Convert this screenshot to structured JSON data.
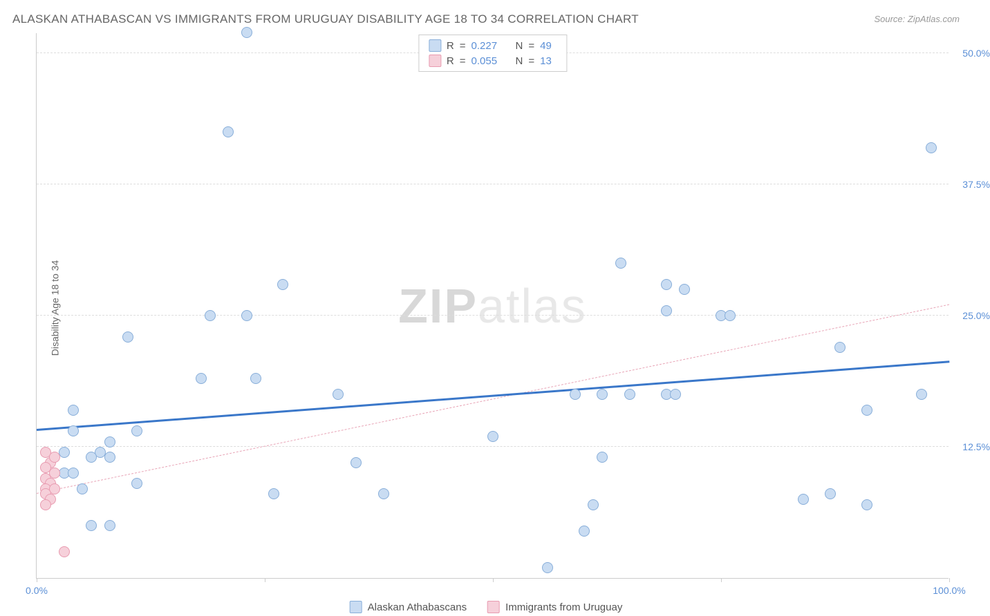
{
  "title": "ALASKAN ATHABASCAN VS IMMIGRANTS FROM URUGUAY DISABILITY AGE 18 TO 34 CORRELATION CHART",
  "source": "Source: ZipAtlas.com",
  "y_axis_label": "Disability Age 18 to 34",
  "watermark": {
    "bold": "ZIP",
    "light": "atlas"
  },
  "chart": {
    "type": "scatter",
    "xlim": [
      0,
      100
    ],
    "ylim": [
      0,
      52
    ],
    "y_ticks": [
      {
        "value": 12.5,
        "label": "12.5%"
      },
      {
        "value": 25.0,
        "label": "25.0%"
      },
      {
        "value": 37.5,
        "label": "37.5%"
      },
      {
        "value": 50.0,
        "label": "50.0%"
      }
    ],
    "x_ticks": [
      {
        "value": 0,
        "label": "0.0%"
      },
      {
        "value": 50,
        "label": ""
      },
      {
        "value": 100,
        "label": "100.0%"
      }
    ],
    "x_minor_ticks": [
      25,
      75
    ],
    "background_color": "#ffffff",
    "grid_color": "#dddddd"
  },
  "series": {
    "a": {
      "name": "Alaskan Athabascans",
      "fill": "#c9dcf2",
      "stroke": "#88aed9",
      "marker_size": 16,
      "r_value": "0.227",
      "n_value": "49",
      "trend": {
        "x1": 0,
        "y1": 14.0,
        "x2": 100,
        "y2": 20.5,
        "color": "#3a77c9",
        "width": 3,
        "dash": false
      },
      "points": [
        [
          23,
          52
        ],
        [
          21,
          42.5
        ],
        [
          98,
          41
        ],
        [
          64,
          30
        ],
        [
          69,
          28
        ],
        [
          71,
          27.5
        ],
        [
          27,
          28
        ],
        [
          69,
          25.5
        ],
        [
          75,
          25
        ],
        [
          76,
          25
        ],
        [
          19,
          25
        ],
        [
          23,
          25
        ],
        [
          10,
          23
        ],
        [
          88,
          22
        ],
        [
          18,
          19
        ],
        [
          24,
          19
        ],
        [
          33,
          17.5
        ],
        [
          59,
          17.5
        ],
        [
          62,
          17.5
        ],
        [
          65,
          17.5
        ],
        [
          69,
          17.5
        ],
        [
          70,
          17.5
        ],
        [
          91,
          16
        ],
        [
          97,
          17.5
        ],
        [
          4,
          16
        ],
        [
          4,
          14
        ],
        [
          11,
          14
        ],
        [
          8,
          13
        ],
        [
          7,
          12
        ],
        [
          50,
          13.5
        ],
        [
          3,
          12
        ],
        [
          6,
          11.5
        ],
        [
          8,
          11.5
        ],
        [
          62,
          11.5
        ],
        [
          35,
          11
        ],
        [
          3,
          10
        ],
        [
          4,
          10
        ],
        [
          5,
          8.5
        ],
        [
          11,
          9
        ],
        [
          26,
          8
        ],
        [
          38,
          8
        ],
        [
          61,
          7
        ],
        [
          84,
          7.5
        ],
        [
          87,
          8
        ],
        [
          91,
          7
        ],
        [
          6,
          5
        ],
        [
          8,
          5
        ],
        [
          60,
          4.5
        ],
        [
          56,
          1
        ]
      ]
    },
    "b": {
      "name": "Immigrants from Uruguay",
      "fill": "#f6d0da",
      "stroke": "#e89bb0",
      "marker_size": 16,
      "r_value": "0.055",
      "n_value": "13",
      "trend": {
        "x1": 0,
        "y1": 8.0,
        "x2": 100,
        "y2": 26.0,
        "color": "#e8a4b6",
        "width": 1,
        "dash": true
      },
      "points": [
        [
          1,
          12
        ],
        [
          1.5,
          11
        ],
        [
          2,
          11.5
        ],
        [
          1,
          10.5
        ],
        [
          2,
          10
        ],
        [
          1,
          9.5
        ],
        [
          1.5,
          9
        ],
        [
          1,
          8.5
        ],
        [
          2,
          8.5
        ],
        [
          1,
          8
        ],
        [
          1.5,
          7.5
        ],
        [
          1,
          7
        ],
        [
          3,
          2.5
        ]
      ]
    }
  },
  "stats_box": {
    "rows": [
      {
        "series": "a"
      },
      {
        "series": "b"
      }
    ],
    "r_label": "R",
    "n_label": "N",
    "eq": "="
  },
  "bottom_legend": [
    {
      "series": "a"
    },
    {
      "series": "b"
    }
  ]
}
